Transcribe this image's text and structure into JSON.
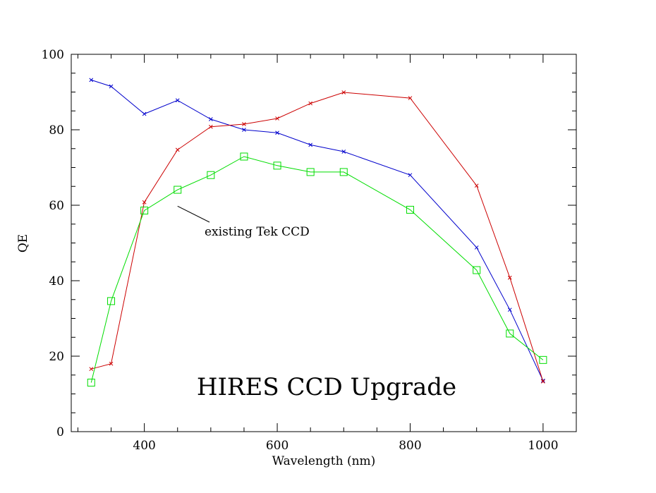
{
  "chart_data": {
    "type": "line",
    "title": "HIRES CCD Upgrade",
    "xlabel": "Wavelength (nm)",
    "ylabel": "QE",
    "xlim": [
      290,
      1050
    ],
    "ylim": [
      0,
      100
    ],
    "x_ticks": [
      "400",
      "600",
      "800",
      "1000"
    ],
    "y_ticks": [
      "0",
      "20",
      "40",
      "60",
      "80",
      "100"
    ],
    "grid": false,
    "legend": "none",
    "annotation": {
      "text": "existing Tek CCD",
      "points_to": {
        "x": 450,
        "y": 60.5
      }
    },
    "series": [
      {
        "color": "#0000cc",
        "marker": "x",
        "points": [
          {
            "x": 320,
            "y": 93.2
          },
          {
            "x": 350,
            "y": 91.5
          },
          {
            "x": 400,
            "y": 84.2
          },
          {
            "x": 450,
            "y": 87.8
          },
          {
            "x": 500,
            "y": 82.8
          },
          {
            "x": 550,
            "y": 80.0
          },
          {
            "x": 600,
            "y": 79.2
          },
          {
            "x": 650,
            "y": 76.0
          },
          {
            "x": 700,
            "y": 74.2
          },
          {
            "x": 800,
            "y": 68.0
          },
          {
            "x": 900,
            "y": 48.8
          },
          {
            "x": 950,
            "y": 32.3
          },
          {
            "x": 1000,
            "y": 13.5
          }
        ]
      },
      {
        "color": "#cc0000",
        "marker": "x",
        "points": [
          {
            "x": 320,
            "y": 16.6
          },
          {
            "x": 350,
            "y": 18.0
          },
          {
            "x": 400,
            "y": 60.8
          },
          {
            "x": 450,
            "y": 74.7
          },
          {
            "x": 500,
            "y": 80.8
          },
          {
            "x": 550,
            "y": 81.5
          },
          {
            "x": 600,
            "y": 83.0
          },
          {
            "x": 650,
            "y": 87.0
          },
          {
            "x": 700,
            "y": 89.9
          },
          {
            "x": 800,
            "y": 88.4
          },
          {
            "x": 900,
            "y": 65.2
          },
          {
            "x": 950,
            "y": 40.8
          },
          {
            "x": 1000,
            "y": 13.3
          }
        ]
      },
      {
        "color": "#00dd00",
        "marker": "square",
        "points": [
          {
            "x": 320,
            "y": 13.0
          },
          {
            "x": 350,
            "y": 34.6
          },
          {
            "x": 400,
            "y": 58.6
          },
          {
            "x": 450,
            "y": 64.1
          },
          {
            "x": 500,
            "y": 68.0
          },
          {
            "x": 550,
            "y": 72.9
          },
          {
            "x": 600,
            "y": 70.5
          },
          {
            "x": 650,
            "y": 68.8
          },
          {
            "x": 700,
            "y": 68.8
          },
          {
            "x": 800,
            "y": 58.8
          },
          {
            "x": 900,
            "y": 42.8
          },
          {
            "x": 950,
            "y": 26.0
          },
          {
            "x": 1000,
            "y": 19.0
          }
        ]
      }
    ]
  }
}
